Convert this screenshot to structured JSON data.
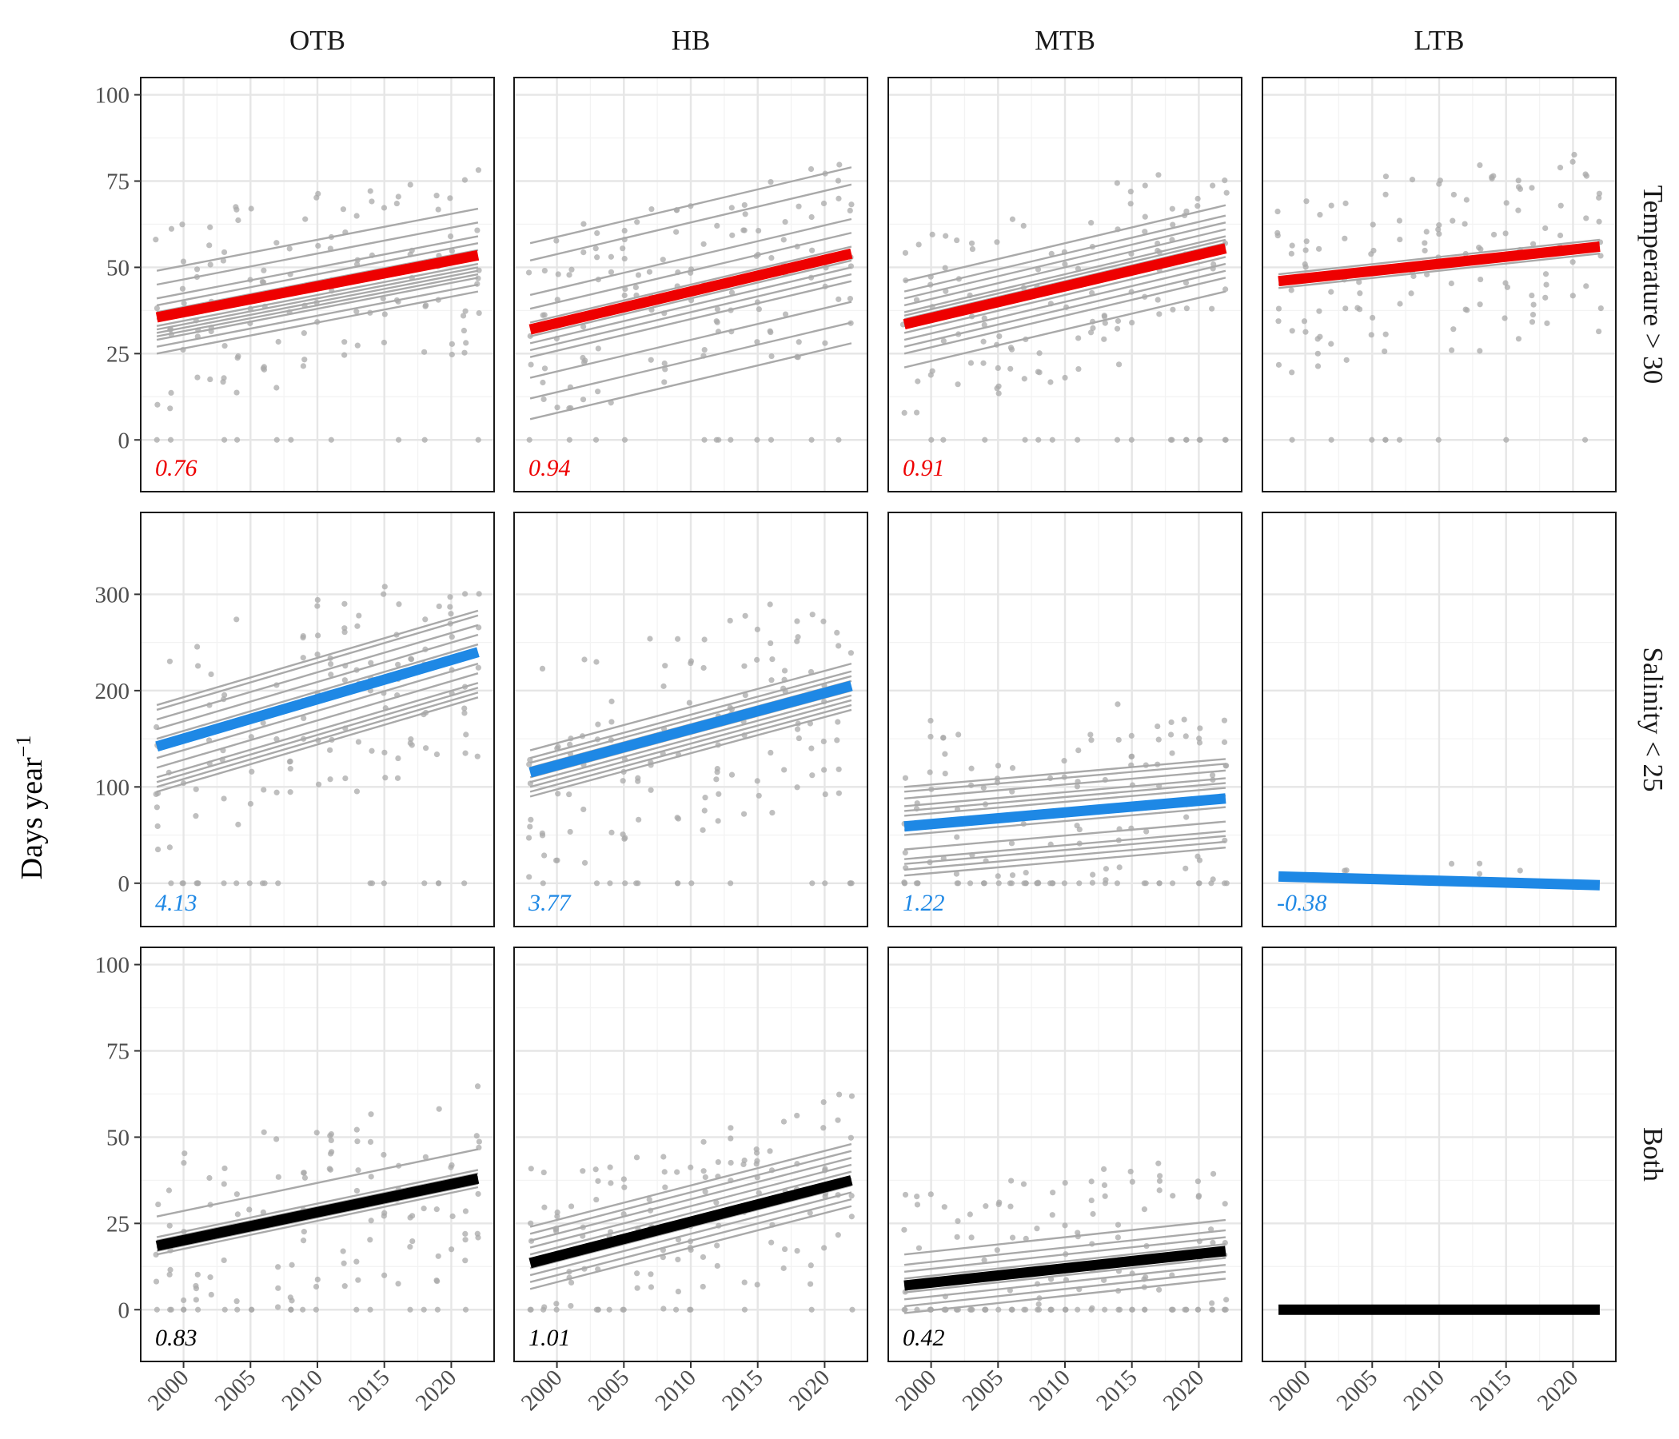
{
  "chart_data": {
    "type": "scatter",
    "layout": "facet-grid",
    "title": "",
    "ylabel": "Days year",
    "ylabel_superscript": "−1",
    "xlabel": "",
    "columns": [
      "OTB",
      "HB",
      "MTB",
      "LTB"
    ],
    "rows": [
      "Temperature > 30",
      "Salinity < 25",
      "Both"
    ],
    "x_range": [
      1996.8,
      2023.2
    ],
    "x_ticks": [
      2000,
      2005,
      2010,
      2015,
      2020
    ],
    "row_axes": [
      {
        "ylim": [
          -15,
          105
        ],
        "ticks": [
          0,
          25,
          50,
          75,
          100
        ]
      },
      {
        "ylim": [
          -45,
          385
        ],
        "ticks": [
          0,
          100,
          200,
          300
        ]
      },
      {
        "ylim": [
          -15,
          105
        ],
        "ticks": [
          0,
          25,
          50,
          75,
          100
        ]
      }
    ],
    "colors": {
      "Temperature > 30": "#ee0000",
      "Salinity < 25": "#1e88e5",
      "Both": "#000000",
      "points": "#aaaaaa",
      "station_lines": "#a9a9a9"
    },
    "x_start": 1998,
    "x_end": 2022,
    "panels": [
      {
        "row": 0,
        "col": 0,
        "slope_label": "0.76",
        "trend": {
          "y_start": 35.5,
          "y_end": 53.5
        },
        "station_lines": [
          [
            31,
            49
          ],
          [
            33,
            51
          ],
          [
            37,
            55
          ],
          [
            41,
            59
          ],
          [
            45,
            63
          ],
          [
            49,
            67
          ],
          [
            35,
            53
          ],
          [
            29,
            47
          ],
          [
            27,
            45
          ],
          [
            39,
            57
          ],
          [
            32,
            50
          ],
          [
            30,
            48
          ],
          [
            25,
            43
          ]
        ]
      },
      {
        "row": 0,
        "col": 1,
        "slope_label": "0.94",
        "trend": {
          "y_start": 32,
          "y_end": 54
        },
        "station_lines": [
          [
            6,
            28
          ],
          [
            12,
            34
          ],
          [
            18,
            40
          ],
          [
            28,
            50
          ],
          [
            30,
            52
          ],
          [
            34,
            56
          ],
          [
            38,
            60
          ],
          [
            42,
            64
          ],
          [
            52,
            74
          ],
          [
            57,
            79
          ],
          [
            26,
            48
          ],
          [
            24,
            46
          ]
        ]
      },
      {
        "row": 0,
        "col": 2,
        "slope_label": "0.91",
        "trend": {
          "y_start": 33.5,
          "y_end": 55.5
        },
        "station_lines": [
          [
            21,
            43
          ],
          [
            25,
            47
          ],
          [
            29,
            51
          ],
          [
            31,
            53
          ],
          [
            33,
            55
          ],
          [
            35,
            57
          ],
          [
            37,
            59
          ],
          [
            39,
            61
          ],
          [
            41,
            63
          ],
          [
            43,
            65
          ],
          [
            46,
            68
          ],
          [
            27,
            49
          ],
          [
            36,
            58
          ],
          [
            34,
            56
          ]
        ]
      },
      {
        "row": 0,
        "col": 3,
        "slope_label": "",
        "trend": {
          "y_start": 46,
          "y_end": 56
        },
        "station_lines": [
          [
            45,
            55
          ],
          [
            47,
            57
          ],
          [
            48,
            58
          ],
          [
            44,
            54
          ]
        ]
      },
      {
        "row": 1,
        "col": 0,
        "slope_label": "4.13",
        "trend": {
          "y_start": 142,
          "y_end": 240
        },
        "station_lines": [
          [
            95,
            193
          ],
          [
            100,
            198
          ],
          [
            110,
            208
          ],
          [
            120,
            218
          ],
          [
            130,
            228
          ],
          [
            140,
            238
          ],
          [
            150,
            248
          ],
          [
            160,
            258
          ],
          [
            170,
            268
          ],
          [
            180,
            278
          ],
          [
            185,
            283
          ],
          [
            105,
            203
          ]
        ]
      },
      {
        "row": 1,
        "col": 1,
        "slope_label": "3.77",
        "trend": {
          "y_start": 115,
          "y_end": 205
        },
        "station_lines": [
          [
            90,
            180
          ],
          [
            95,
            185
          ],
          [
            100,
            190
          ],
          [
            105,
            195
          ],
          [
            110,
            200
          ],
          [
            120,
            210
          ],
          [
            130,
            220
          ],
          [
            138,
            228
          ],
          [
            125,
            215
          ]
        ]
      },
      {
        "row": 1,
        "col": 2,
        "slope_label": "1.22",
        "trend": {
          "y_start": 59,
          "y_end": 88
        },
        "station_lines": [
          [
            8,
            37
          ],
          [
            14,
            43
          ],
          [
            20,
            49
          ],
          [
            25,
            54
          ],
          [
            35,
            64
          ],
          [
            50,
            79
          ],
          [
            55,
            84
          ],
          [
            62,
            91
          ],
          [
            70,
            99
          ],
          [
            75,
            104
          ],
          [
            80,
            109
          ],
          [
            88,
            117
          ],
          [
            95,
            124
          ],
          [
            100,
            129
          ]
        ]
      },
      {
        "row": 1,
        "col": 3,
        "slope_label": "-0.38",
        "trend": {
          "y_start": 7,
          "y_end": -2
        },
        "station_lines": []
      },
      {
        "row": 2,
        "col": 0,
        "slope_label": "0.83",
        "trend": {
          "y_start": 18.5,
          "y_end": 38
        },
        "station_lines": [
          [
            27,
            46.5
          ],
          [
            17,
            36.5
          ],
          [
            18,
            37.5
          ],
          [
            19,
            38.5
          ],
          [
            20,
            39.5
          ],
          [
            16,
            35.5
          ],
          [
            21,
            40.5
          ]
        ]
      },
      {
        "row": 2,
        "col": 1,
        "slope_label": "1.01",
        "trend": {
          "y_start": 13.5,
          "y_end": 37.5
        },
        "station_lines": [
          [
            6,
            30
          ],
          [
            8,
            32
          ],
          [
            10,
            34
          ],
          [
            12,
            36
          ],
          [
            14,
            38
          ],
          [
            16,
            40
          ],
          [
            18,
            42
          ],
          [
            20,
            44
          ],
          [
            22,
            46
          ],
          [
            24,
            48
          ]
        ]
      },
      {
        "row": 2,
        "col": 2,
        "slope_label": "0.42",
        "trend": {
          "y_start": 7,
          "y_end": 17
        },
        "station_lines": [
          [
            -1,
            9
          ],
          [
            1,
            11
          ],
          [
            3,
            13
          ],
          [
            5,
            15
          ],
          [
            9,
            19
          ],
          [
            11,
            21
          ],
          [
            13,
            23
          ],
          [
            16,
            26
          ],
          [
            7,
            17
          ]
        ]
      },
      {
        "row": 2,
        "col": 3,
        "slope_label": "",
        "trend": {
          "y_start": 0,
          "y_end": 0
        },
        "station_lines": []
      }
    ]
  }
}
